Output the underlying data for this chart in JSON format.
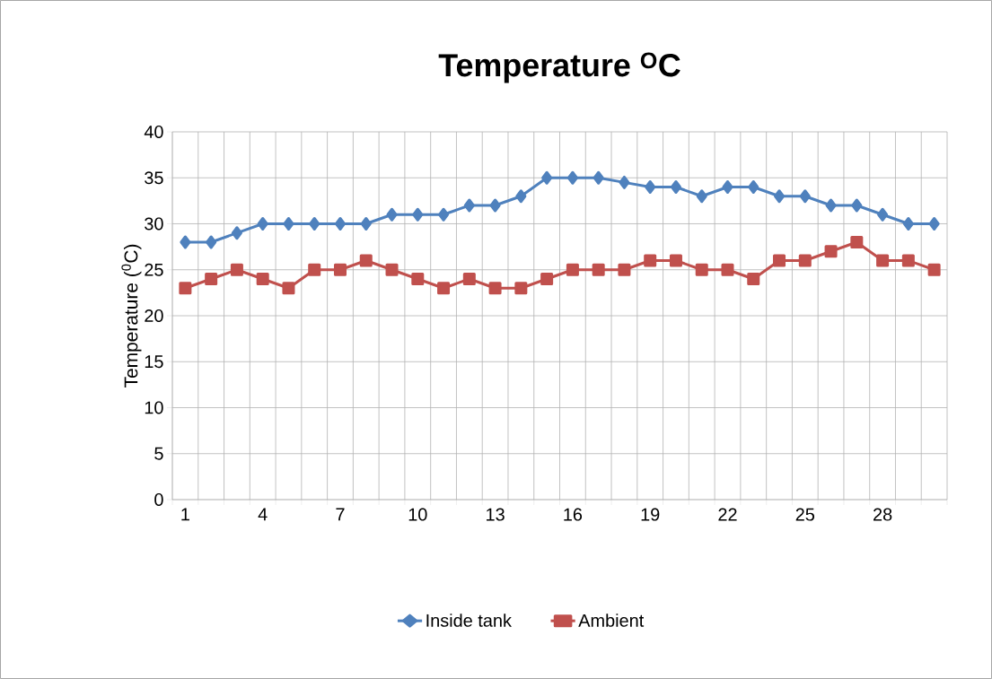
{
  "chart_data": {
    "type": "line",
    "title": "Temperature $^{O}$C",
    "ylabel": "Temperature ($^{0}$C)",
    "categories": [
      "1",
      null,
      null,
      "4",
      null,
      null,
      "7",
      null,
      null,
      "10",
      null,
      null,
      "13",
      null,
      null,
      "16",
      null,
      null,
      "19",
      null,
      null,
      "22",
      null,
      null,
      "25",
      null,
      null,
      "28",
      null,
      null
    ],
    "series": [
      {
        "name": "Inside tank",
        "color": "#4f81bd",
        "marker": "diamond",
        "values": [
          28,
          28,
          29,
          30,
          30,
          30,
          30,
          30,
          31,
          31,
          31,
          32,
          32,
          33,
          35,
          35,
          35,
          34.5,
          34,
          34,
          33,
          34,
          34,
          33,
          33,
          32,
          32,
          31,
          30,
          30
        ]
      },
      {
        "name": "Ambient",
        "color": "#c0504d",
        "marker": "square",
        "values": [
          23,
          24,
          25,
          24,
          23,
          25,
          25,
          26,
          25,
          24,
          23,
          24,
          23,
          23,
          24,
          25,
          25,
          25,
          26,
          26,
          25,
          25,
          24,
          26,
          26,
          27,
          28,
          26,
          26,
          25
        ]
      }
    ],
    "ylim": [
      0,
      40
    ],
    "yticks": [
      0,
      5,
      10,
      15,
      20,
      25,
      30,
      35,
      40
    ],
    "grid": true,
    "legend": "bottom"
  }
}
